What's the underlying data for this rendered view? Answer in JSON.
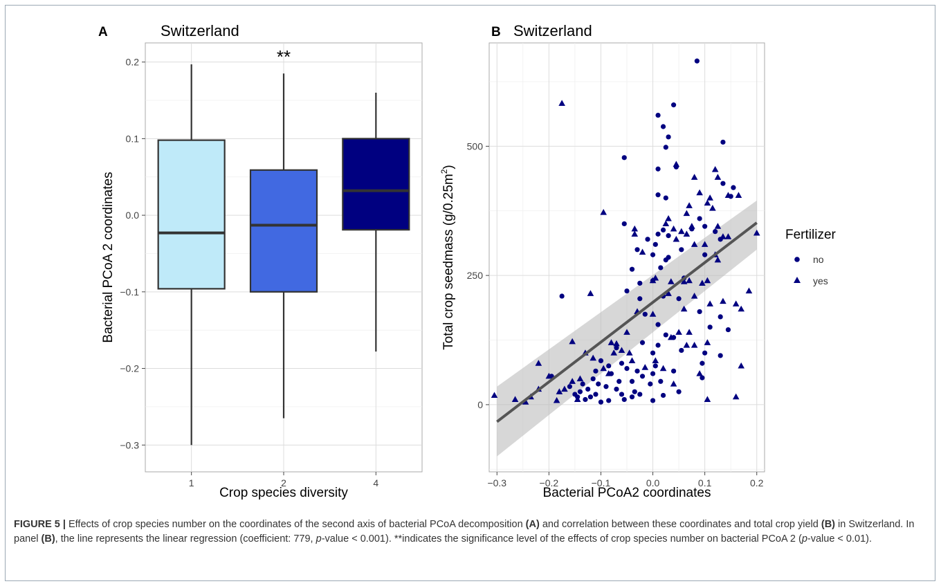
{
  "chart_data": [
    {
      "type": "box",
      "panel_letter": "A",
      "title": "Switzerland",
      "xlabel": "Crop species diversity",
      "ylabel": "Bacterial PCoA 2 coordinates",
      "ylim": [
        -0.335,
        0.225
      ],
      "yticks": [
        -0.3,
        -0.2,
        -0.1,
        0.0,
        0.1,
        0.2
      ],
      "ytick_labels": [
        "−0.3",
        "−0.2",
        "−0.1",
        "0.0",
        "0.1",
        "0.2"
      ],
      "grid": true,
      "categories": [
        "1",
        "2",
        "4"
      ],
      "boxes": [
        {
          "category": "1",
          "whisker_low": -0.3,
          "q1": -0.096,
          "median": -0.023,
          "q3": 0.098,
          "whisker_high": 0.197,
          "fill": "#bfeaf9"
        },
        {
          "category": "2",
          "whisker_low": -0.265,
          "q1": -0.1,
          "median": -0.013,
          "q3": 0.059,
          "whisker_high": 0.185,
          "fill": "#4169e1"
        },
        {
          "category": "4",
          "whisker_low": -0.178,
          "q1": -0.019,
          "median": 0.032,
          "q3": 0.1,
          "whisker_high": 0.16,
          "fill": "#000080"
        }
      ],
      "annotations": [
        {
          "category": "2",
          "text": "**",
          "y": 0.208
        }
      ]
    },
    {
      "type": "scatter",
      "panel_letter": "B",
      "title": "Switzerland",
      "xlabel": "Bacterial PCoA2 coordinates",
      "ylabel": "Total crop seedmass (g/0.25m",
      "ylabel_sup": "2",
      "ylabel_end": ")",
      "xlim": [
        -0.315,
        0.215
      ],
      "ylim": [
        -130,
        700
      ],
      "xticks": [
        -0.3,
        -0.2,
        -0.1,
        0.0,
        0.1,
        0.2
      ],
      "xtick_labels": [
        "−0.3",
        "−0.2",
        "−0.1",
        "0.0",
        "0.1",
        "0.2"
      ],
      "yticks": [
        0,
        250,
        500
      ],
      "ytick_labels": [
        "0",
        "250",
        "500"
      ],
      "grid": true,
      "point_color": "#000080",
      "legend": {
        "title": "Fertilizer",
        "position": "right",
        "entries": [
          {
            "label": "no",
            "shape": "circle"
          },
          {
            "label": "yes",
            "shape": "triangle"
          }
        ]
      },
      "regression": {
        "x": [
          -0.3,
          0.2
        ],
        "y": [
          -33,
          352
        ],
        "ci_low": [
          -100,
          300
        ],
        "ci_high": [
          35,
          395
        ]
      },
      "series": [
        {
          "name": "no",
          "shape": "circle",
          "points": [
            [
              0.085,
              665
            ],
            [
              0.04,
              580
            ],
            [
              0.03,
              518
            ],
            [
              0.025,
              498
            ],
            [
              0.135,
              508
            ],
            [
              0.01,
              560
            ],
            [
              0.02,
              538
            ],
            [
              -0.055,
              478
            ],
            [
              0.01,
              456
            ],
            [
              0.01,
              406
            ],
            [
              0.025,
              400
            ],
            [
              0.045,
              460
            ],
            [
              0.135,
              428
            ],
            [
              0.155,
              420
            ],
            [
              0.15,
              403
            ],
            [
              -0.055,
              350
            ],
            [
              0.02,
              338
            ],
            [
              0.03,
              327
            ],
            [
              0.01,
              330
            ],
            [
              0.005,
              310
            ],
            [
              0.075,
              340
            ],
            [
              0.09,
              360
            ],
            [
              0.1,
              345
            ],
            [
              0.12,
              335
            ],
            [
              -0.03,
              300
            ],
            [
              -0.01,
              320
            ],
            [
              0.0,
              290
            ],
            [
              0.025,
              280
            ],
            [
              0.015,
              265
            ],
            [
              0.03,
              285
            ],
            [
              0.055,
              300
            ],
            [
              -0.04,
              262
            ],
            [
              -0.025,
              235
            ],
            [
              0.0,
              240
            ],
            [
              0.06,
              245
            ],
            [
              0.1,
              290
            ],
            [
              0.13,
              320
            ],
            [
              -0.175,
              210
            ],
            [
              -0.05,
              220
            ],
            [
              -0.025,
              205
            ],
            [
              0.02,
              210
            ],
            [
              0.05,
              205
            ],
            [
              0.09,
              180
            ],
            [
              -0.015,
              175
            ],
            [
              0.01,
              155
            ],
            [
              0.025,
              135
            ],
            [
              0.04,
              130
            ],
            [
              0.11,
              150
            ],
            [
              0.13,
              170
            ],
            [
              0.145,
              145
            ],
            [
              -0.02,
              120
            ],
            [
              0.0,
              100
            ],
            [
              0.01,
              115
            ],
            [
              0.055,
              105
            ],
            [
              0.095,
              80
            ],
            [
              0.1,
              100
            ],
            [
              0.13,
              95
            ],
            [
              -0.07,
              110
            ],
            [
              -0.085,
              75
            ],
            [
              -0.1,
              85
            ],
            [
              -0.08,
              60
            ],
            [
              -0.06,
              80
            ],
            [
              -0.05,
              70
            ],
            [
              -0.03,
              65
            ],
            [
              -0.04,
              45
            ],
            [
              -0.02,
              55
            ],
            [
              0.0,
              60
            ],
            [
              0.015,
              45
            ],
            [
              0.04,
              65
            ],
            [
              0.05,
              25
            ],
            [
              0.095,
              52
            ],
            [
              -0.11,
              65
            ],
            [
              -0.115,
              50
            ],
            [
              -0.125,
              30
            ],
            [
              -0.12,
              15
            ],
            [
              -0.105,
              40
            ],
            [
              -0.09,
              35
            ],
            [
              -0.065,
              45
            ],
            [
              -0.07,
              30
            ],
            [
              -0.06,
              20
            ],
            [
              -0.055,
              10
            ],
            [
              -0.04,
              15
            ],
            [
              -0.035,
              25
            ],
            [
              -0.025,
              20
            ],
            [
              -0.005,
              40
            ],
            [
              0.005,
              75
            ],
            [
              0.02,
              18
            ],
            [
              -0.1,
              5
            ],
            [
              -0.085,
              8
            ],
            [
              -0.145,
              15
            ],
            [
              -0.14,
              25
            ],
            [
              -0.135,
              40
            ],
            [
              -0.15,
              20
            ],
            [
              -0.16,
              35
            ],
            [
              -0.195,
              55
            ],
            [
              -0.13,
              10
            ],
            [
              -0.11,
              20
            ],
            [
              0.0,
              8
            ]
          ]
        },
        {
          "name": "yes",
          "shape": "triangle",
          "points": [
            [
              -0.175,
              583
            ],
            [
              0.045,
              465
            ],
            [
              0.12,
              455
            ],
            [
              0.125,
              440
            ],
            [
              -0.095,
              372
            ],
            [
              0.08,
              440
            ],
            [
              0.09,
              410
            ],
            [
              0.105,
              390
            ],
            [
              0.11,
              400
            ],
            [
              0.115,
              380
            ],
            [
              0.145,
              405
            ],
            [
              0.165,
              405
            ],
            [
              0.04,
              340
            ],
            [
              0.075,
              345
            ],
            [
              0.07,
              385
            ],
            [
              0.065,
              370
            ],
            [
              0.08,
              310
            ],
            [
              0.1,
              310
            ],
            [
              0.135,
              325
            ],
            [
              0.125,
              345
            ],
            [
              0.145,
              325
            ],
            [
              0.2,
              332
            ],
            [
              0.025,
              350
            ],
            [
              0.03,
              360
            ],
            [
              0.045,
              320
            ],
            [
              0.055,
              335
            ],
            [
              0.065,
              330
            ],
            [
              -0.035,
              340
            ],
            [
              -0.035,
              330
            ],
            [
              -0.02,
              295
            ],
            [
              0.0,
              240
            ],
            [
              0.005,
              245
            ],
            [
              0.035,
              238
            ],
            [
              0.06,
              238
            ],
            [
              0.07,
              240
            ],
            [
              0.12,
              290
            ],
            [
              0.125,
              280
            ],
            [
              0.105,
              240
            ],
            [
              0.08,
              210
            ],
            [
              0.095,
              235
            ],
            [
              0.11,
              195
            ],
            [
              0.135,
              200
            ],
            [
              0.185,
              220
            ],
            [
              0.16,
              195
            ],
            [
              0.17,
              185
            ],
            [
              -0.12,
              215
            ],
            [
              -0.03,
              180
            ],
            [
              0.03,
              215
            ],
            [
              0.06,
              185
            ],
            [
              0.05,
              140
            ],
            [
              0.065,
              115
            ],
            [
              0.08,
              115
            ],
            [
              0.105,
              120
            ],
            [
              0.035,
              130
            ],
            [
              0.07,
              140
            ],
            [
              0.0,
              175
            ],
            [
              -0.05,
              140
            ],
            [
              -0.07,
              118
            ],
            [
              -0.155,
              122
            ],
            [
              -0.08,
              120
            ],
            [
              -0.075,
              100
            ],
            [
              -0.06,
              105
            ],
            [
              -0.045,
              100
            ],
            [
              -0.04,
              85
            ],
            [
              -0.015,
              72
            ],
            [
              0.005,
              85
            ],
            [
              0.02,
              70
            ],
            [
              0.04,
              40
            ],
            [
              0.09,
              60
            ],
            [
              -0.13,
              100
            ],
            [
              -0.115,
              90
            ],
            [
              -0.095,
              70
            ],
            [
              -0.085,
              60
            ],
            [
              -0.14,
              50
            ],
            [
              -0.155,
              45
            ],
            [
              -0.17,
              30
            ],
            [
              -0.18,
              25
            ],
            [
              -0.2,
              55
            ],
            [
              -0.22,
              80
            ],
            [
              -0.22,
              30
            ],
            [
              -0.235,
              15
            ],
            [
              -0.265,
              10
            ],
            [
              -0.305,
              18
            ],
            [
              -0.245,
              5
            ],
            [
              -0.185,
              8
            ],
            [
              -0.145,
              10
            ],
            [
              0.105,
              10
            ],
            [
              0.16,
              15
            ],
            [
              0.17,
              75
            ]
          ]
        }
      ]
    }
  ],
  "caption": {
    "figure_label": "FIGURE 5 |",
    "part1": " Effects of crop species number on the coordinates of the second axis of bacterial PCoA decomposition ",
    "ref_a1": "(A)",
    "part2": " and correlation between these coordinates and total crop yield ",
    "ref_b1": "(B)",
    "part3": " in Switzerland. In panel ",
    "ref_b2": "(B)",
    "part4": ", the line represents the linear regression (coefficient: 779, ",
    "p1": "p",
    "part5": "-value < 0.001). **indicates the significance level of the effects of crop species number on bacterial PCoA 2 (",
    "p2": "p",
    "part6": "-value < 0.01)."
  }
}
